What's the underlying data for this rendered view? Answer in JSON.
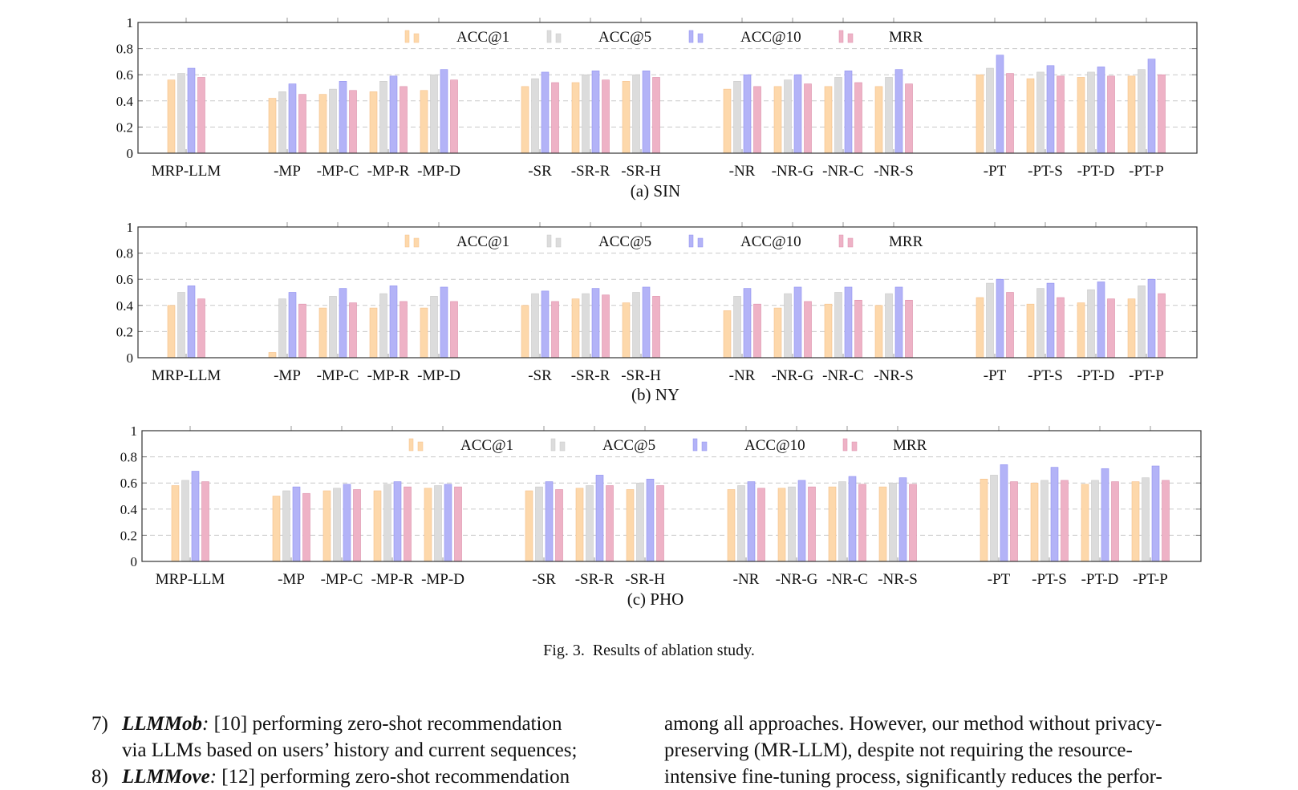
{
  "figure": {
    "caption_label": "Fig. 3.",
    "caption_text": "Results of ablation study."
  },
  "legend": [
    "ACC@1",
    "ACC@5",
    "ACC@10",
    "MRR"
  ],
  "colors": {
    "ACC@1": "#fdd8ab",
    "ACC@5": "#dcdcdc",
    "ACC@10": "#b3b3f7",
    "MRR": "#eeb2c6"
  },
  "chart_data": [
    {
      "type": "bar",
      "caption": "(a) SIN",
      "ylim": [
        0,
        1
      ],
      "yticks": [
        "0",
        "0.2",
        "0.4",
        "0.6",
        "0.8",
        "1"
      ],
      "categories": [
        "MRP-LLM",
        "-MP",
        "-MP-C",
        "-MP-R",
        "-MP-D",
        "-SR",
        "-SR-R",
        "-SR-H",
        "-NR",
        "-NR-G",
        "-NR-C",
        "-NR-S",
        "-PT",
        "-PT-S",
        "-PT-D",
        "-PT-P"
      ],
      "series": [
        {
          "name": "ACC@1",
          "values": [
            0.56,
            0.42,
            0.45,
            0.47,
            0.48,
            0.51,
            0.54,
            0.55,
            0.49,
            0.51,
            0.51,
            0.51,
            0.6,
            0.57,
            0.58,
            0.59
          ]
        },
        {
          "name": "ACC@5",
          "values": [
            0.61,
            0.47,
            0.49,
            0.55,
            0.6,
            0.57,
            0.6,
            0.6,
            0.55,
            0.56,
            0.58,
            0.58,
            0.65,
            0.62,
            0.62,
            0.64
          ]
        },
        {
          "name": "ACC@10",
          "values": [
            0.65,
            0.53,
            0.55,
            0.59,
            0.64,
            0.62,
            0.63,
            0.63,
            0.6,
            0.6,
            0.63,
            0.64,
            0.75,
            0.67,
            0.66,
            0.72
          ]
        },
        {
          "name": "MRR",
          "values": [
            0.58,
            0.45,
            0.48,
            0.51,
            0.56,
            0.54,
            0.56,
            0.58,
            0.51,
            0.53,
            0.54,
            0.53,
            0.61,
            0.59,
            0.59,
            0.6
          ]
        }
      ]
    },
    {
      "type": "bar",
      "caption": "(b) NY",
      "ylim": [
        0,
        1
      ],
      "yticks": [
        "0",
        "0.2",
        "0.4",
        "0.6",
        "0.8",
        "1"
      ],
      "categories": [
        "MRP-LLM",
        "-MP",
        "-MP-C",
        "-MP-R",
        "-MP-D",
        "-SR",
        "-SR-R",
        "-SR-H",
        "-NR",
        "-NR-G",
        "-NR-C",
        "-NR-S",
        "-PT",
        "-PT-S",
        "-PT-D",
        "-PT-P"
      ],
      "series": [
        {
          "name": "ACC@1",
          "values": [
            0.4,
            0.04,
            0.38,
            0.38,
            0.38,
            0.4,
            0.45,
            0.42,
            0.36,
            0.38,
            0.41,
            0.4,
            0.46,
            0.41,
            0.42,
            0.45
          ]
        },
        {
          "name": "ACC@5",
          "values": [
            0.5,
            0.45,
            0.47,
            0.49,
            0.47,
            0.49,
            0.49,
            0.5,
            0.47,
            0.49,
            0.5,
            0.49,
            0.57,
            0.53,
            0.52,
            0.55
          ]
        },
        {
          "name": "ACC@10",
          "values": [
            0.55,
            0.5,
            0.53,
            0.55,
            0.54,
            0.51,
            0.53,
            0.54,
            0.53,
            0.54,
            0.54,
            0.54,
            0.6,
            0.57,
            0.58,
            0.6
          ]
        },
        {
          "name": "MRR",
          "values": [
            0.45,
            0.41,
            0.42,
            0.43,
            0.43,
            0.43,
            0.48,
            0.47,
            0.41,
            0.43,
            0.44,
            0.44,
            0.5,
            0.46,
            0.45,
            0.49
          ]
        }
      ]
    },
    {
      "type": "bar",
      "caption": "(c) PHO",
      "ylim": [
        0,
        1
      ],
      "yticks": [
        "0",
        "0.2",
        "0.4",
        "0.6",
        "0.8",
        "1"
      ],
      "categories": [
        "MRP-LLM",
        "-MP",
        "-MP-C",
        "-MP-R",
        "-MP-D",
        "-SR",
        "-SR-R",
        "-SR-H",
        "-NR",
        "-NR-G",
        "-NR-C",
        "-NR-S",
        "-PT",
        "-PT-S",
        "-PT-D",
        "-PT-P"
      ],
      "series": [
        {
          "name": "ACC@1",
          "values": [
            0.58,
            0.5,
            0.54,
            0.54,
            0.56,
            0.54,
            0.56,
            0.55,
            0.55,
            0.56,
            0.57,
            0.57,
            0.63,
            0.6,
            0.59,
            0.61
          ]
        },
        {
          "name": "ACC@5",
          "values": [
            0.62,
            0.54,
            0.56,
            0.59,
            0.58,
            0.57,
            0.58,
            0.6,
            0.58,
            0.57,
            0.61,
            0.6,
            0.66,
            0.62,
            0.62,
            0.64
          ]
        },
        {
          "name": "ACC@10",
          "values": [
            0.69,
            0.57,
            0.59,
            0.61,
            0.59,
            0.61,
            0.66,
            0.63,
            0.61,
            0.62,
            0.65,
            0.64,
            0.74,
            0.72,
            0.71,
            0.73
          ]
        },
        {
          "name": "MRR",
          "values": [
            0.61,
            0.52,
            0.55,
            0.57,
            0.57,
            0.55,
            0.58,
            0.58,
            0.56,
            0.57,
            0.59,
            0.59,
            0.61,
            0.62,
            0.61,
            0.62
          ]
        }
      ]
    }
  ],
  "text": {
    "left_num": "7)",
    "left_term": "LLMMob",
    "left_colon": ":",
    "left_rest": " [10] performing zero-shot recommendation",
    "left_line2": "via LLMs based on users’ history and current sequences;",
    "left_num2": "8)",
    "left_term2": "LLMMove",
    "left_rest2": " [12] performing zero-shot recommendation",
    "right_line1": "among all approaches. However, our method without privacy-",
    "right_line2": "preserving (MR-LLM), despite not requiring the resource-",
    "right_line3": "intensive fine-tuning process, significantly reduces the perfor-"
  }
}
